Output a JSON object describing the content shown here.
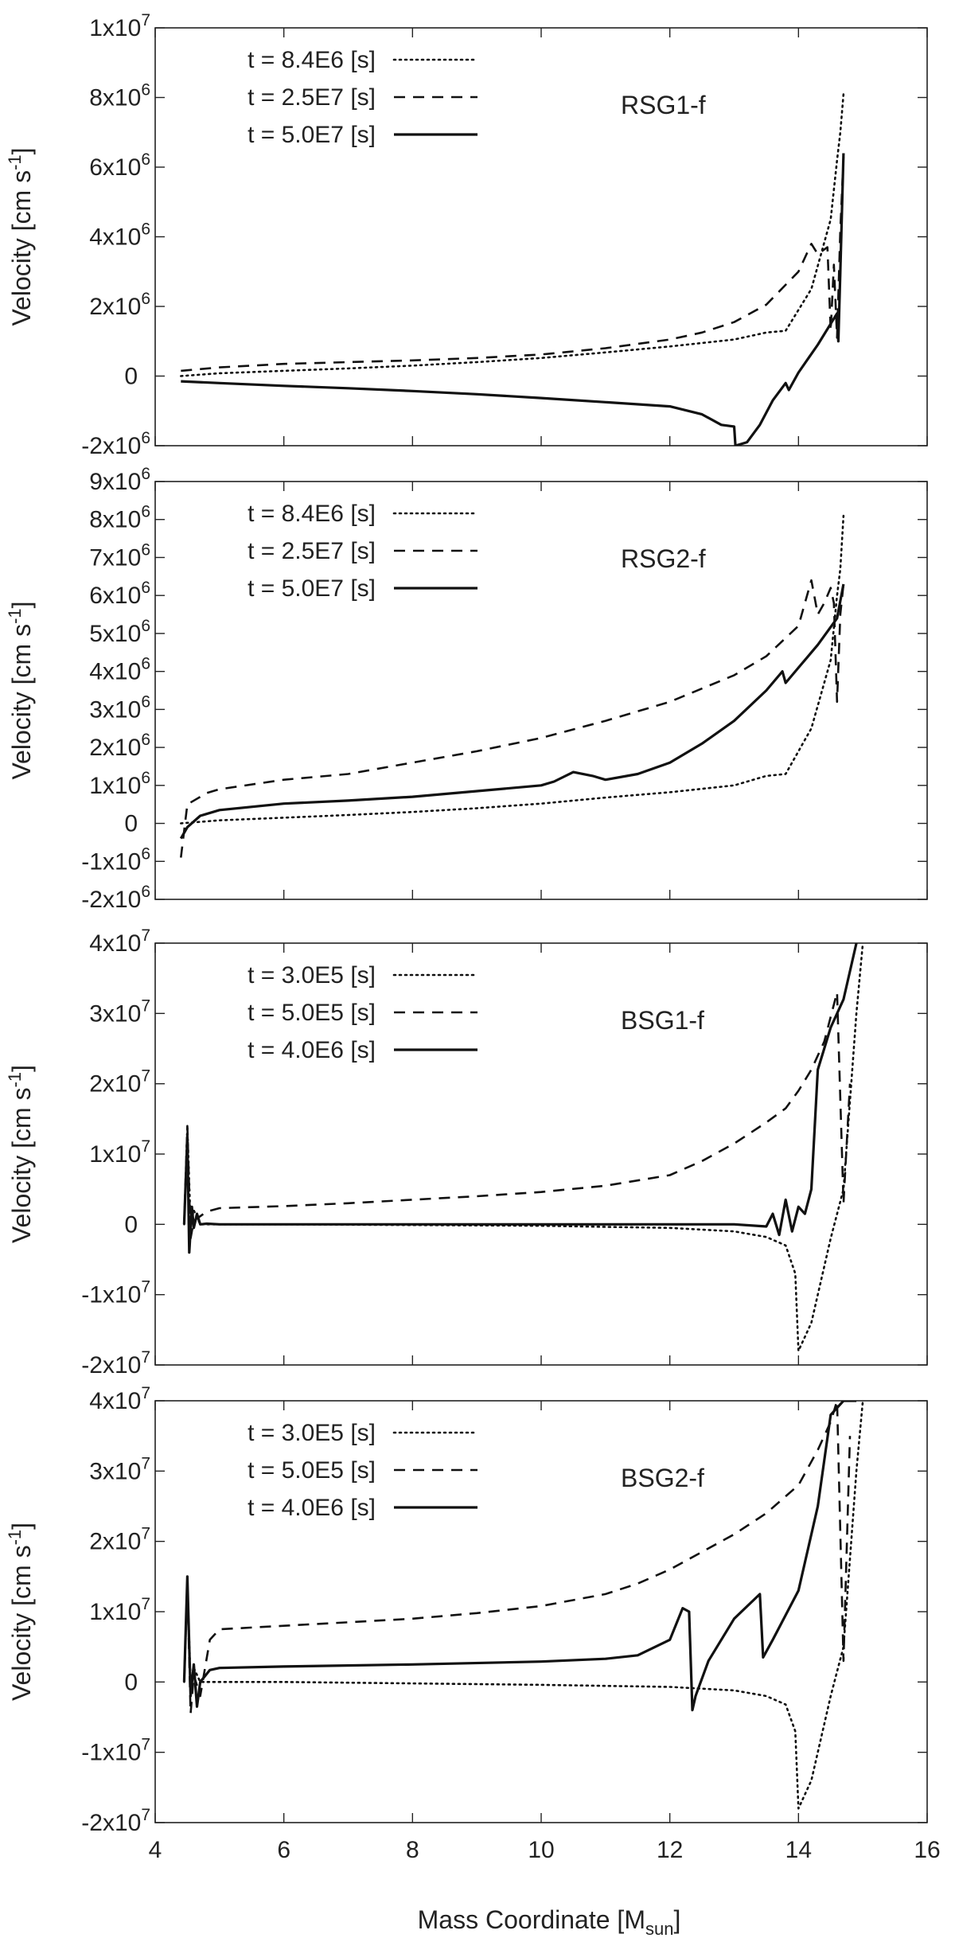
{
  "figure": {
    "xlabel": "Mass Coordinate [M",
    "xlabel_sub": "sun",
    "xlabel_tail": "]",
    "ylabel": "Velocity [cm s",
    "ylabel_sup": "-1",
    "ylabel_tail": "]"
  },
  "chart_data": [
    {
      "type": "line",
      "label": "RSG1-f",
      "xlim": [
        4,
        16
      ],
      "ylim": [
        -2000000,
        10000000
      ],
      "yticks": [
        {
          "m": "-2x10",
          "e": "6"
        },
        {
          "m": "0",
          "e": ""
        },
        {
          "m": "2x10",
          "e": "6"
        },
        {
          "m": "4x10",
          "e": "6"
        },
        {
          "m": "6x10",
          "e": "6"
        },
        {
          "m": "8x10",
          "e": "6"
        },
        {
          "m": "1x10",
          "e": "7"
        }
      ],
      "series": [
        {
          "name": "t = 8.4E6 [s]",
          "style": "dotted",
          "x": [
            4.4,
            5,
            6,
            7,
            8,
            9,
            10,
            11,
            12,
            13,
            13.5,
            13.8,
            14.2,
            14.5,
            14.6,
            14.65,
            14.7
          ],
          "y": [
            0,
            80000,
            150000,
            220000,
            300000,
            400000,
            520000,
            680000,
            850000,
            1050000,
            1250000,
            1300000,
            2500000,
            4500000,
            6200000,
            7000000,
            8100000
          ]
        },
        {
          "name": "t = 2.5E7 [s]",
          "style": "dashed",
          "x": [
            4.4,
            5,
            6,
            7,
            8,
            9,
            10,
            11,
            12,
            12.5,
            13,
            13.5,
            14,
            14.2,
            14.3,
            14.45,
            14.5,
            14.55,
            14.6,
            14.65,
            14.7
          ],
          "y": [
            150000,
            250000,
            350000,
            400000,
            450000,
            520000,
            620000,
            800000,
            1050000,
            1250000,
            1550000,
            2050000,
            3000000,
            3800000,
            3500000,
            3700000,
            1300000,
            3200000,
            1100000,
            4200000,
            6300000
          ]
        },
        {
          "name": "t = 5.0E7 [s]",
          "style": "solid",
          "x": [
            4.4,
            5,
            6,
            7,
            8,
            9,
            10,
            11,
            12,
            12.5,
            12.8,
            13.0,
            13.02,
            13.2,
            13.4,
            13.6,
            13.8,
            13.85,
            14.0,
            14.3,
            14.6,
            14.62,
            14.65,
            14.7
          ],
          "y": [
            -150000,
            -200000,
            -280000,
            -350000,
            -430000,
            -520000,
            -630000,
            -750000,
            -870000,
            -1100000,
            -1400000,
            -1450000,
            -2000000,
            -1900000,
            -1400000,
            -700000,
            -200000,
            -400000,
            100000,
            900000,
            1800000,
            1000000,
            3000000,
            6400000
          ]
        }
      ]
    },
    {
      "type": "line",
      "label": "RSG2-f",
      "xlim": [
        4,
        16
      ],
      "ylim": [
        -2000000,
        9000000
      ],
      "yticks": [
        {
          "m": "-2x10",
          "e": "6"
        },
        {
          "m": "-1x10",
          "e": "6"
        },
        {
          "m": "0",
          "e": ""
        },
        {
          "m": "1x10",
          "e": "6"
        },
        {
          "m": "2x10",
          "e": "6"
        },
        {
          "m": "3x10",
          "e": "6"
        },
        {
          "m": "4x10",
          "e": "6"
        },
        {
          "m": "5x10",
          "e": "6"
        },
        {
          "m": "6x10",
          "e": "6"
        },
        {
          "m": "7x10",
          "e": "6"
        },
        {
          "m": "8x10",
          "e": "6"
        },
        {
          "m": "9x10",
          "e": "6"
        }
      ],
      "series": [
        {
          "name": "t = 8.4E6 [s]",
          "style": "dotted",
          "x": [
            4.4,
            5,
            6,
            7,
            8,
            9,
            10,
            11,
            12,
            13,
            13.5,
            13.8,
            14.2,
            14.5,
            14.6,
            14.65,
            14.7
          ],
          "y": [
            0,
            80000,
            150000,
            220000,
            300000,
            400000,
            520000,
            680000,
            820000,
            1000000,
            1250000,
            1300000,
            2500000,
            4300000,
            6000000,
            6700000,
            8100000
          ]
        },
        {
          "name": "t = 2.5E7 [s]",
          "style": "dashed",
          "x": [
            4.4,
            4.5,
            4.8,
            5,
            6,
            7,
            8,
            9,
            10,
            11,
            12,
            13,
            13.5,
            14,
            14.2,
            14.3,
            14.4,
            14.5,
            14.55,
            14.6,
            14.65,
            14.7
          ],
          "y": [
            -900000,
            500000,
            800000,
            900000,
            1150000,
            1300000,
            1600000,
            1900000,
            2250000,
            2700000,
            3200000,
            3900000,
            4400000,
            5200000,
            6400000,
            5500000,
            5800000,
            6200000,
            5800000,
            3200000,
            5500000,
            6300000
          ]
        },
        {
          "name": "t = 5.0E7 [s]",
          "style": "solid",
          "x": [
            4.4,
            4.5,
            4.7,
            5,
            6,
            7,
            8,
            9,
            10,
            10.2,
            10.5,
            10.8,
            11,
            11.5,
            12,
            12.5,
            13,
            13.5,
            13.75,
            13.8,
            14.0,
            14.3,
            14.6,
            14.7
          ],
          "y": [
            -400000,
            -100000,
            200000,
            350000,
            520000,
            600000,
            700000,
            850000,
            1000000,
            1100000,
            1350000,
            1250000,
            1150000,
            1300000,
            1600000,
            2100000,
            2700000,
            3500000,
            4000000,
            3700000,
            4100000,
            4700000,
            5400000,
            6300000
          ]
        }
      ]
    },
    {
      "type": "line",
      "label": "BSG1-f",
      "xlim": [
        4,
        16
      ],
      "ylim": [
        -20000000,
        40000000
      ],
      "yticks": [
        {
          "m": "-2x10",
          "e": "7"
        },
        {
          "m": "-1x10",
          "e": "7"
        },
        {
          "m": "0",
          "e": ""
        },
        {
          "m": "1x10",
          "e": "7"
        },
        {
          "m": "2x10",
          "e": "7"
        },
        {
          "m": "3x10",
          "e": "7"
        },
        {
          "m": "4x10",
          "e": "7"
        }
      ],
      "series": [
        {
          "name": "t = 3.0E5 [s]",
          "style": "dotted",
          "x": [
            4.45,
            4.5,
            4.55,
            4.6,
            4.7,
            5,
            6,
            8,
            10,
            12,
            13,
            13.5,
            13.8,
            13.95,
            14.0,
            14.2,
            14.5,
            14.7,
            14.9,
            15.0
          ],
          "y": [
            0,
            14000000,
            0,
            2000000,
            0,
            0,
            0,
            -100000,
            -200000,
            -500000,
            -1000000,
            -1800000,
            -3000000,
            -7000000,
            -18000000,
            -14000000,
            -2000000,
            5000000,
            30000000,
            40000000
          ]
        },
        {
          "name": "t = 5.0E5 [s]",
          "style": "dashed",
          "x": [
            4.45,
            4.5,
            4.55,
            4.6,
            4.8,
            5,
            6,
            7,
            8,
            9,
            10,
            11,
            12,
            12.5,
            13,
            13.5,
            13.8,
            14,
            14.2,
            14.4,
            14.6,
            14.7,
            14.8
          ],
          "y": [
            0,
            14000000,
            -2000000,
            500000,
            1800000,
            2300000,
            2600000,
            3000000,
            3500000,
            4000000,
            4600000,
            5500000,
            7000000,
            9000000,
            11500000,
            14500000,
            16500000,
            19000000,
            22000000,
            26000000,
            33000000,
            3000000,
            20000000
          ]
        },
        {
          "name": "t = 4.0E6 [s]",
          "style": "solid",
          "x": [
            4.45,
            4.5,
            4.53,
            4.57,
            4.6,
            4.65,
            4.7,
            4.8,
            5,
            6,
            8,
            10,
            12,
            13,
            13.5,
            13.6,
            13.7,
            13.8,
            13.9,
            14.0,
            14.1,
            14.2,
            14.3,
            14.5,
            14.7,
            14.9
          ],
          "y": [
            0,
            12500000,
            -4000000,
            2500000,
            -500000,
            1500000,
            0,
            100000,
            0,
            0,
            0,
            0,
            0,
            0,
            -300000,
            1500000,
            -1500000,
            3500000,
            -1000000,
            2500000,
            1500000,
            5000000,
            22000000,
            28000000,
            32000000,
            40000000
          ]
        }
      ]
    },
    {
      "type": "line",
      "label": "BSG2-f",
      "xlim": [
        4,
        16
      ],
      "ylim": [
        -20000000,
        40000000
      ],
      "yticks": [
        {
          "m": "-2x10",
          "e": "7"
        },
        {
          "m": "-1x10",
          "e": "7"
        },
        {
          "m": "0",
          "e": ""
        },
        {
          "m": "1x10",
          "e": "7"
        },
        {
          "m": "2x10",
          "e": "7"
        },
        {
          "m": "3x10",
          "e": "7"
        },
        {
          "m": "4x10",
          "e": "7"
        }
      ],
      "series": [
        {
          "name": "t = 3.0E5 [s]",
          "style": "dotted",
          "x": [
            4.45,
            4.5,
            4.55,
            4.6,
            4.7,
            5,
            6,
            8,
            10,
            12,
            13,
            13.5,
            13.8,
            13.95,
            14.0,
            14.2,
            14.5,
            14.7,
            14.9,
            15.0
          ],
          "y": [
            0,
            14000000,
            0,
            2000000,
            0,
            0,
            0,
            -200000,
            -400000,
            -700000,
            -1200000,
            -2000000,
            -3200000,
            -7000000,
            -18000000,
            -14000000,
            -2000000,
            5000000,
            30000000,
            40000000
          ]
        },
        {
          "name": "t = 5.0E5 [s]",
          "style": "dashed",
          "x": [
            4.45,
            4.5,
            4.55,
            4.6,
            4.7,
            4.85,
            5,
            6,
            7,
            8,
            9,
            10,
            11,
            11.5,
            12,
            12.5,
            13,
            13.5,
            14,
            14.3,
            14.5,
            14.6,
            14.7,
            14.8
          ],
          "y": [
            0,
            14000000,
            -4500000,
            1000000,
            -2000000,
            6000000,
            7500000,
            8000000,
            8500000,
            9000000,
            9800000,
            10800000,
            12500000,
            14000000,
            16000000,
            18500000,
            21000000,
            24000000,
            28000000,
            33000000,
            37000000,
            40000000,
            3000000,
            35000000
          ]
        },
        {
          "name": "t = 4.0E6 [s]",
          "style": "solid",
          "x": [
            4.45,
            4.5,
            4.55,
            4.6,
            4.65,
            4.7,
            4.85,
            5,
            6,
            8,
            10,
            11,
            11.5,
            12,
            12.2,
            12.3,
            12.35,
            12.4,
            12.6,
            13,
            13.4,
            13.45,
            13.6,
            14,
            14.3,
            14.5,
            14.7,
            14.9
          ],
          "y": [
            0,
            15000000,
            -2000000,
            2500000,
            -3500000,
            0,
            1700000,
            2000000,
            2200000,
            2500000,
            2900000,
            3300000,
            3800000,
            6000000,
            10500000,
            10000000,
            -4000000,
            -2000000,
            3000000,
            9000000,
            12500000,
            3500000,
            6000000,
            13000000,
            25000000,
            38000000,
            40000000,
            40000000
          ]
        }
      ]
    }
  ]
}
